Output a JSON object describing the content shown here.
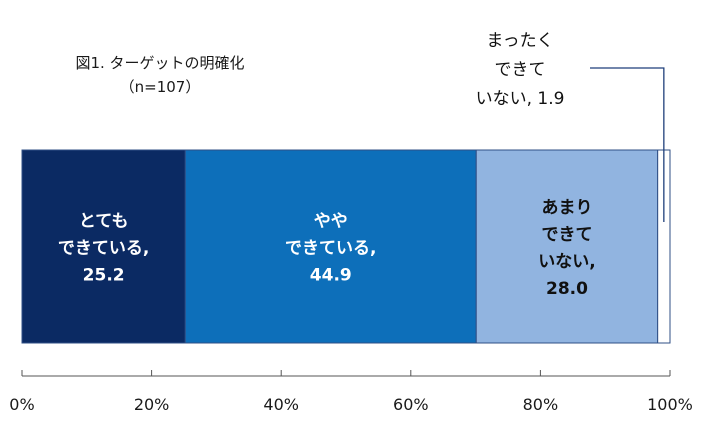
{
  "chart_data": {
    "type": "bar",
    "orientation": "horizontal-stacked-100",
    "title": "図1. ターゲットの明確化",
    "subtitle": "（n=107）",
    "xlim": [
      0,
      100
    ],
    "x_ticks": [
      "0%",
      "20%",
      "40%",
      "60%",
      "80%",
      "100%"
    ],
    "x_tick_values": [
      0,
      20,
      40,
      60,
      80,
      100
    ],
    "grid": false,
    "legend": "none",
    "segments": [
      {
        "label_lines": [
          "とても",
          "できている,"
        ],
        "value_label": "25.2",
        "value": 25.2,
        "color": "#0b2a63",
        "text_color": "#ffffff"
      },
      {
        "label_lines": [
          "やや",
          "できている,"
        ],
        "value_label": "44.9",
        "value": 44.9,
        "color": "#0d6fba",
        "text_color": "#ffffff"
      },
      {
        "label_lines": [
          "あまり",
          "できて",
          "いない,"
        ],
        "value_label": "28.0",
        "value": 28.0,
        "color": "#91b4e0",
        "text_color": "#111111"
      },
      {
        "label_lines": [
          "まったく",
          "できて",
          "いない, 1.9"
        ],
        "value_label": "",
        "value": 1.9,
        "color": "#ffffff",
        "text_color": "#111111",
        "callout": true
      }
    ]
  }
}
